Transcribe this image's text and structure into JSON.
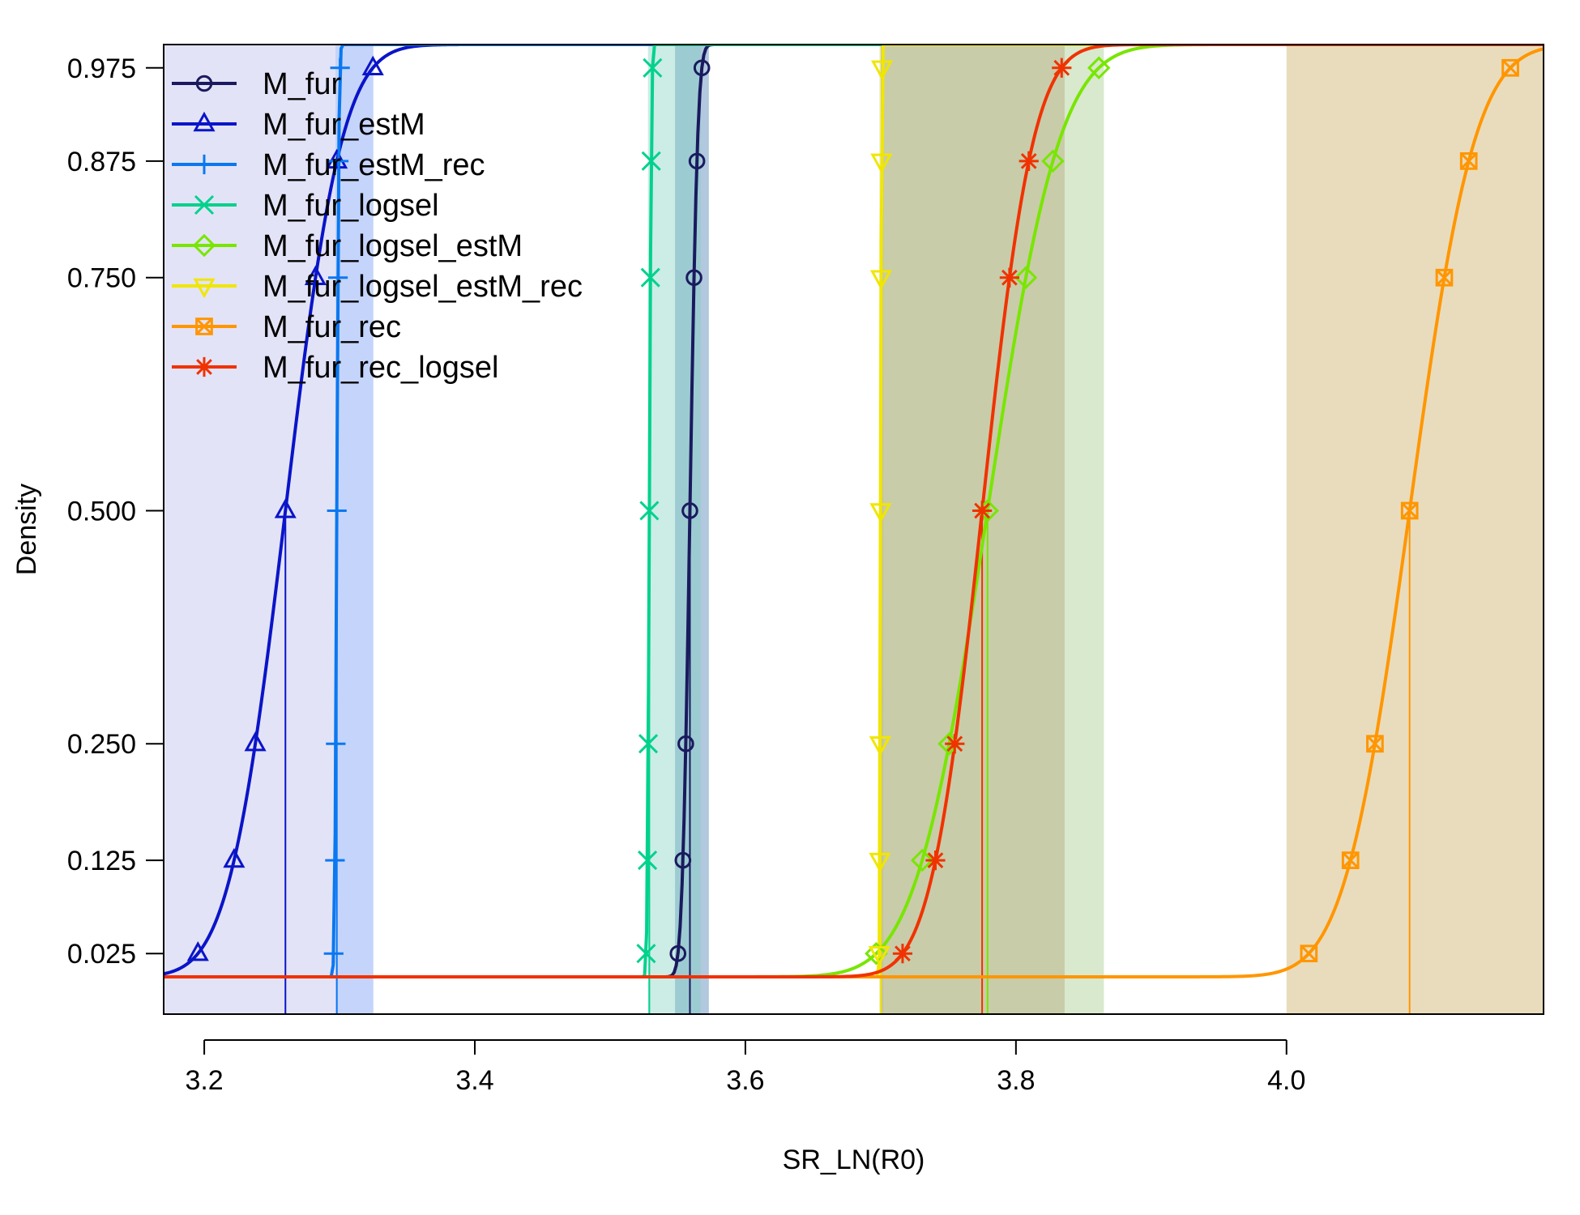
{
  "chart_data": {
    "type": "line",
    "title": "",
    "xlabel": "SR_LN(R0)",
    "ylabel": "Density",
    "xlim": [
      3.17,
      4.19
    ],
    "ylim": [
      -0.04,
      1.0
    ],
    "x_ticks": [
      3.2,
      3.4,
      3.6,
      3.8,
      4.0
    ],
    "x_tick_labels": [
      "3.2",
      "3.4",
      "3.6",
      "3.8",
      "4.0"
    ],
    "y_ticks": [
      0.025,
      0.125,
      0.25,
      0.5,
      0.75,
      0.875,
      0.975
    ],
    "y_tick_labels": [
      "0.025",
      "0.125",
      "0.250",
      "0.500",
      "0.750",
      "0.875",
      "0.975"
    ],
    "marker_probs": [
      0.025,
      0.125,
      0.25,
      0.5,
      0.75,
      0.875,
      0.975
    ],
    "legend_position": "top-left",
    "grid": false,
    "series": [
      {
        "name": "M_fur",
        "color": "#1a1a5e",
        "marker": "circle",
        "median": 3.559,
        "sd": 0.0045,
        "band": [
          3.548,
          3.573
        ],
        "fill": "#2060a0",
        "fill_opacity": 0.35
      },
      {
        "name": "M_fur_estM",
        "color": "#0a14c8",
        "marker": "triangle",
        "median": 3.26,
        "sd": 0.033,
        "band": [
          3.17,
          3.325
        ],
        "fill": "#c8c8f0",
        "fill_opacity": 0.5
      },
      {
        "name": "M_fur_estM_rec",
        "color": "#0a78f0",
        "marker": "plus",
        "median": 3.298,
        "sd": 0.0012,
        "band": [
          3.297,
          3.325
        ],
        "fill": "#a0c0ff",
        "fill_opacity": 0.45
      },
      {
        "name": "M_fur_logsel",
        "color": "#00d28c",
        "marker": "cross",
        "median": 3.529,
        "sd": 0.0012,
        "band": [
          3.528,
          3.567
        ],
        "fill": "#80d0c0",
        "fill_opacity": 0.4
      },
      {
        "name": "M_fur_logsel_estM",
        "color": "#78e600",
        "marker": "diamond",
        "median": 3.779,
        "sd": 0.042,
        "band": [
          3.7,
          3.865
        ],
        "fill": "#90c070",
        "fill_opacity": 0.35
      },
      {
        "name": "M_fur_logsel_estM_rec",
        "color": "#f0e600",
        "marker": "triangle-down",
        "median": 3.7,
        "sd": 0.0005,
        "band": [
          3.699,
          3.702
        ],
        "fill": "#c8c860",
        "fill_opacity": 0.3
      },
      {
        "name": "M_fur_rec",
        "color": "#ff9600",
        "marker": "square-x",
        "median": 4.091,
        "sd": 0.038,
        "band": [
          4.0,
          4.19
        ],
        "fill": "#c09a40",
        "fill_opacity": 0.35
      },
      {
        "name": "M_fur_rec_logsel",
        "color": "#f03200",
        "marker": "asterisk",
        "median": 3.775,
        "sd": 0.03,
        "band": [
          3.7,
          3.836
        ],
        "fill": "#b09868",
        "fill_opacity": 0.35
      }
    ]
  }
}
